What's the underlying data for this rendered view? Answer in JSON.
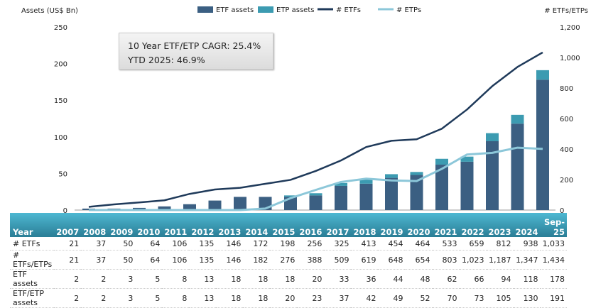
{
  "chart_data": {
    "type": "bar",
    "categories": [
      "2007",
      "2008",
      "2009",
      "2010",
      "2011",
      "2012",
      "2013",
      "2014",
      "2015",
      "2016",
      "2017",
      "2018",
      "2019",
      "2020",
      "2021",
      "2022",
      "2023",
      "2024",
      "Sep-25"
    ],
    "left_axis": {
      "label": "Assets (US$ Bn)",
      "ylim": [
        0,
        250
      ],
      "ticks": [
        "0",
        "50",
        "100",
        "150",
        "200",
        "250"
      ]
    },
    "right_axis": {
      "label": "# ETFs/ETPs",
      "ylim": [
        0,
        1200
      ],
      "ticks": [
        "0",
        "200",
        "400",
        "600",
        "800",
        "1,000",
        "1,200"
      ]
    },
    "series": [
      {
        "name": "ETF assets",
        "type": "stacked-bar",
        "axis": "left",
        "color": "#3b5f82",
        "values": [
          2,
          2,
          3,
          5,
          8,
          13,
          18,
          18,
          18,
          20,
          33,
          36,
          44,
          48,
          62,
          66,
          94,
          118,
          178
        ]
      },
      {
        "name": "ETP assets",
        "type": "stacked-bar",
        "axis": "left",
        "color": "#3c9bb1",
        "values": [
          0,
          0,
          0,
          0,
          0,
          0,
          0,
          0,
          2,
          3,
          4,
          6,
          5,
          4,
          8,
          7,
          11,
          12,
          13
        ]
      },
      {
        "name": "# ETFs",
        "type": "line",
        "axis": "right",
        "color": "#1f3a5a",
        "values": [
          21,
          37,
          50,
          64,
          106,
          135,
          146,
          172,
          198,
          256,
          325,
          413,
          454,
          464,
          533,
          659,
          812,
          938,
          1033
        ]
      },
      {
        "name": "# ETPs",
        "type": "line",
        "axis": "right",
        "color": "#8cc7d9",
        "values": [
          0,
          0,
          0,
          0,
          0,
          0,
          0,
          10,
          78,
          132,
          184,
          206,
          194,
          190,
          270,
          364,
          375,
          409,
          401
        ]
      }
    ],
    "legend_placement": "top",
    "grid": false,
    "annotation": [
      "10 Year ETF/ETP CAGR: 25.4%",
      "YTD 2025: 46.9%"
    ]
  },
  "table": {
    "header": "Year",
    "rows": [
      {
        "label": "# ETFs",
        "values": [
          "21",
          "37",
          "50",
          "64",
          "106",
          "135",
          "146",
          "172",
          "198",
          "256",
          "325",
          "413",
          "454",
          "464",
          "533",
          "659",
          "812",
          "938",
          "1,033"
        ]
      },
      {
        "label": "# ETFs/ETPs",
        "values": [
          "21",
          "37",
          "50",
          "64",
          "106",
          "135",
          "146",
          "182",
          "276",
          "388",
          "509",
          "619",
          "648",
          "654",
          "803",
          "1,023",
          "1,187",
          "1,347",
          "1,434"
        ]
      },
      {
        "label": "ETF assets",
        "values": [
          "2",
          "2",
          "3",
          "5",
          "8",
          "13",
          "18",
          "18",
          "18",
          "20",
          "33",
          "36",
          "44",
          "48",
          "62",
          "66",
          "94",
          "118",
          "178"
        ]
      },
      {
        "label": "ETF/ETP assets",
        "values": [
          "2",
          "2",
          "3",
          "5",
          "8",
          "13",
          "18",
          "18",
          "20",
          "23",
          "37",
          "42",
          "49",
          "52",
          "70",
          "73",
          "105",
          "130",
          "191"
        ]
      }
    ]
  }
}
